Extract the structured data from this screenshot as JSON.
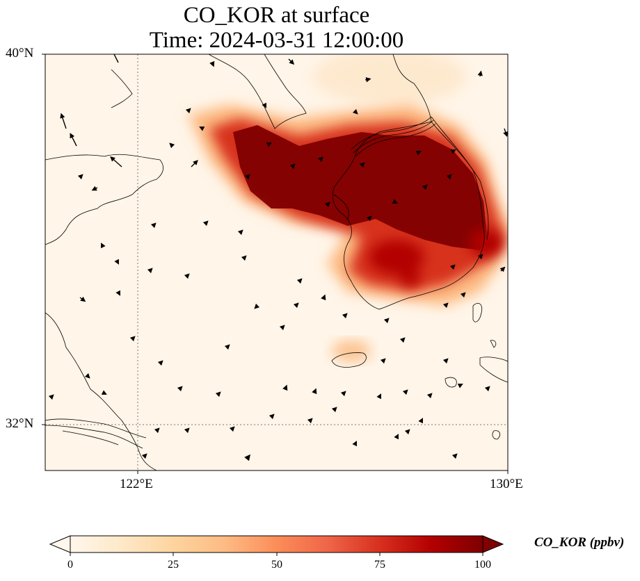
{
  "title": {
    "line1": "CO_KOR at surface",
    "line2": "Time: 2024-03-31 12:00:00"
  },
  "axes": {
    "lat_labels": [
      "40°N",
      "32°N"
    ],
    "lon_labels": [
      "122°E",
      "130°E"
    ],
    "lon_range": [
      120,
      130
    ],
    "lat_range": [
      31,
      40
    ]
  },
  "colorbar": {
    "label": "CO_KOR (ppbv)",
    "ticks": [
      "0",
      "25",
      "50",
      "75",
      "100"
    ],
    "range": [
      0,
      100
    ],
    "extend": "both",
    "colormap": "OrRd",
    "colors": [
      "#fff7ec",
      "#fee8c8",
      "#fdd49e",
      "#fdbb84",
      "#fc8d59",
      "#ef6548",
      "#d7301f",
      "#b30000",
      "#7f0000"
    ]
  },
  "map": {
    "variable": "CO_KOR",
    "gridlines": "dotted",
    "plume_color": "#7f0000",
    "background_color": "#fff5e8"
  }
}
